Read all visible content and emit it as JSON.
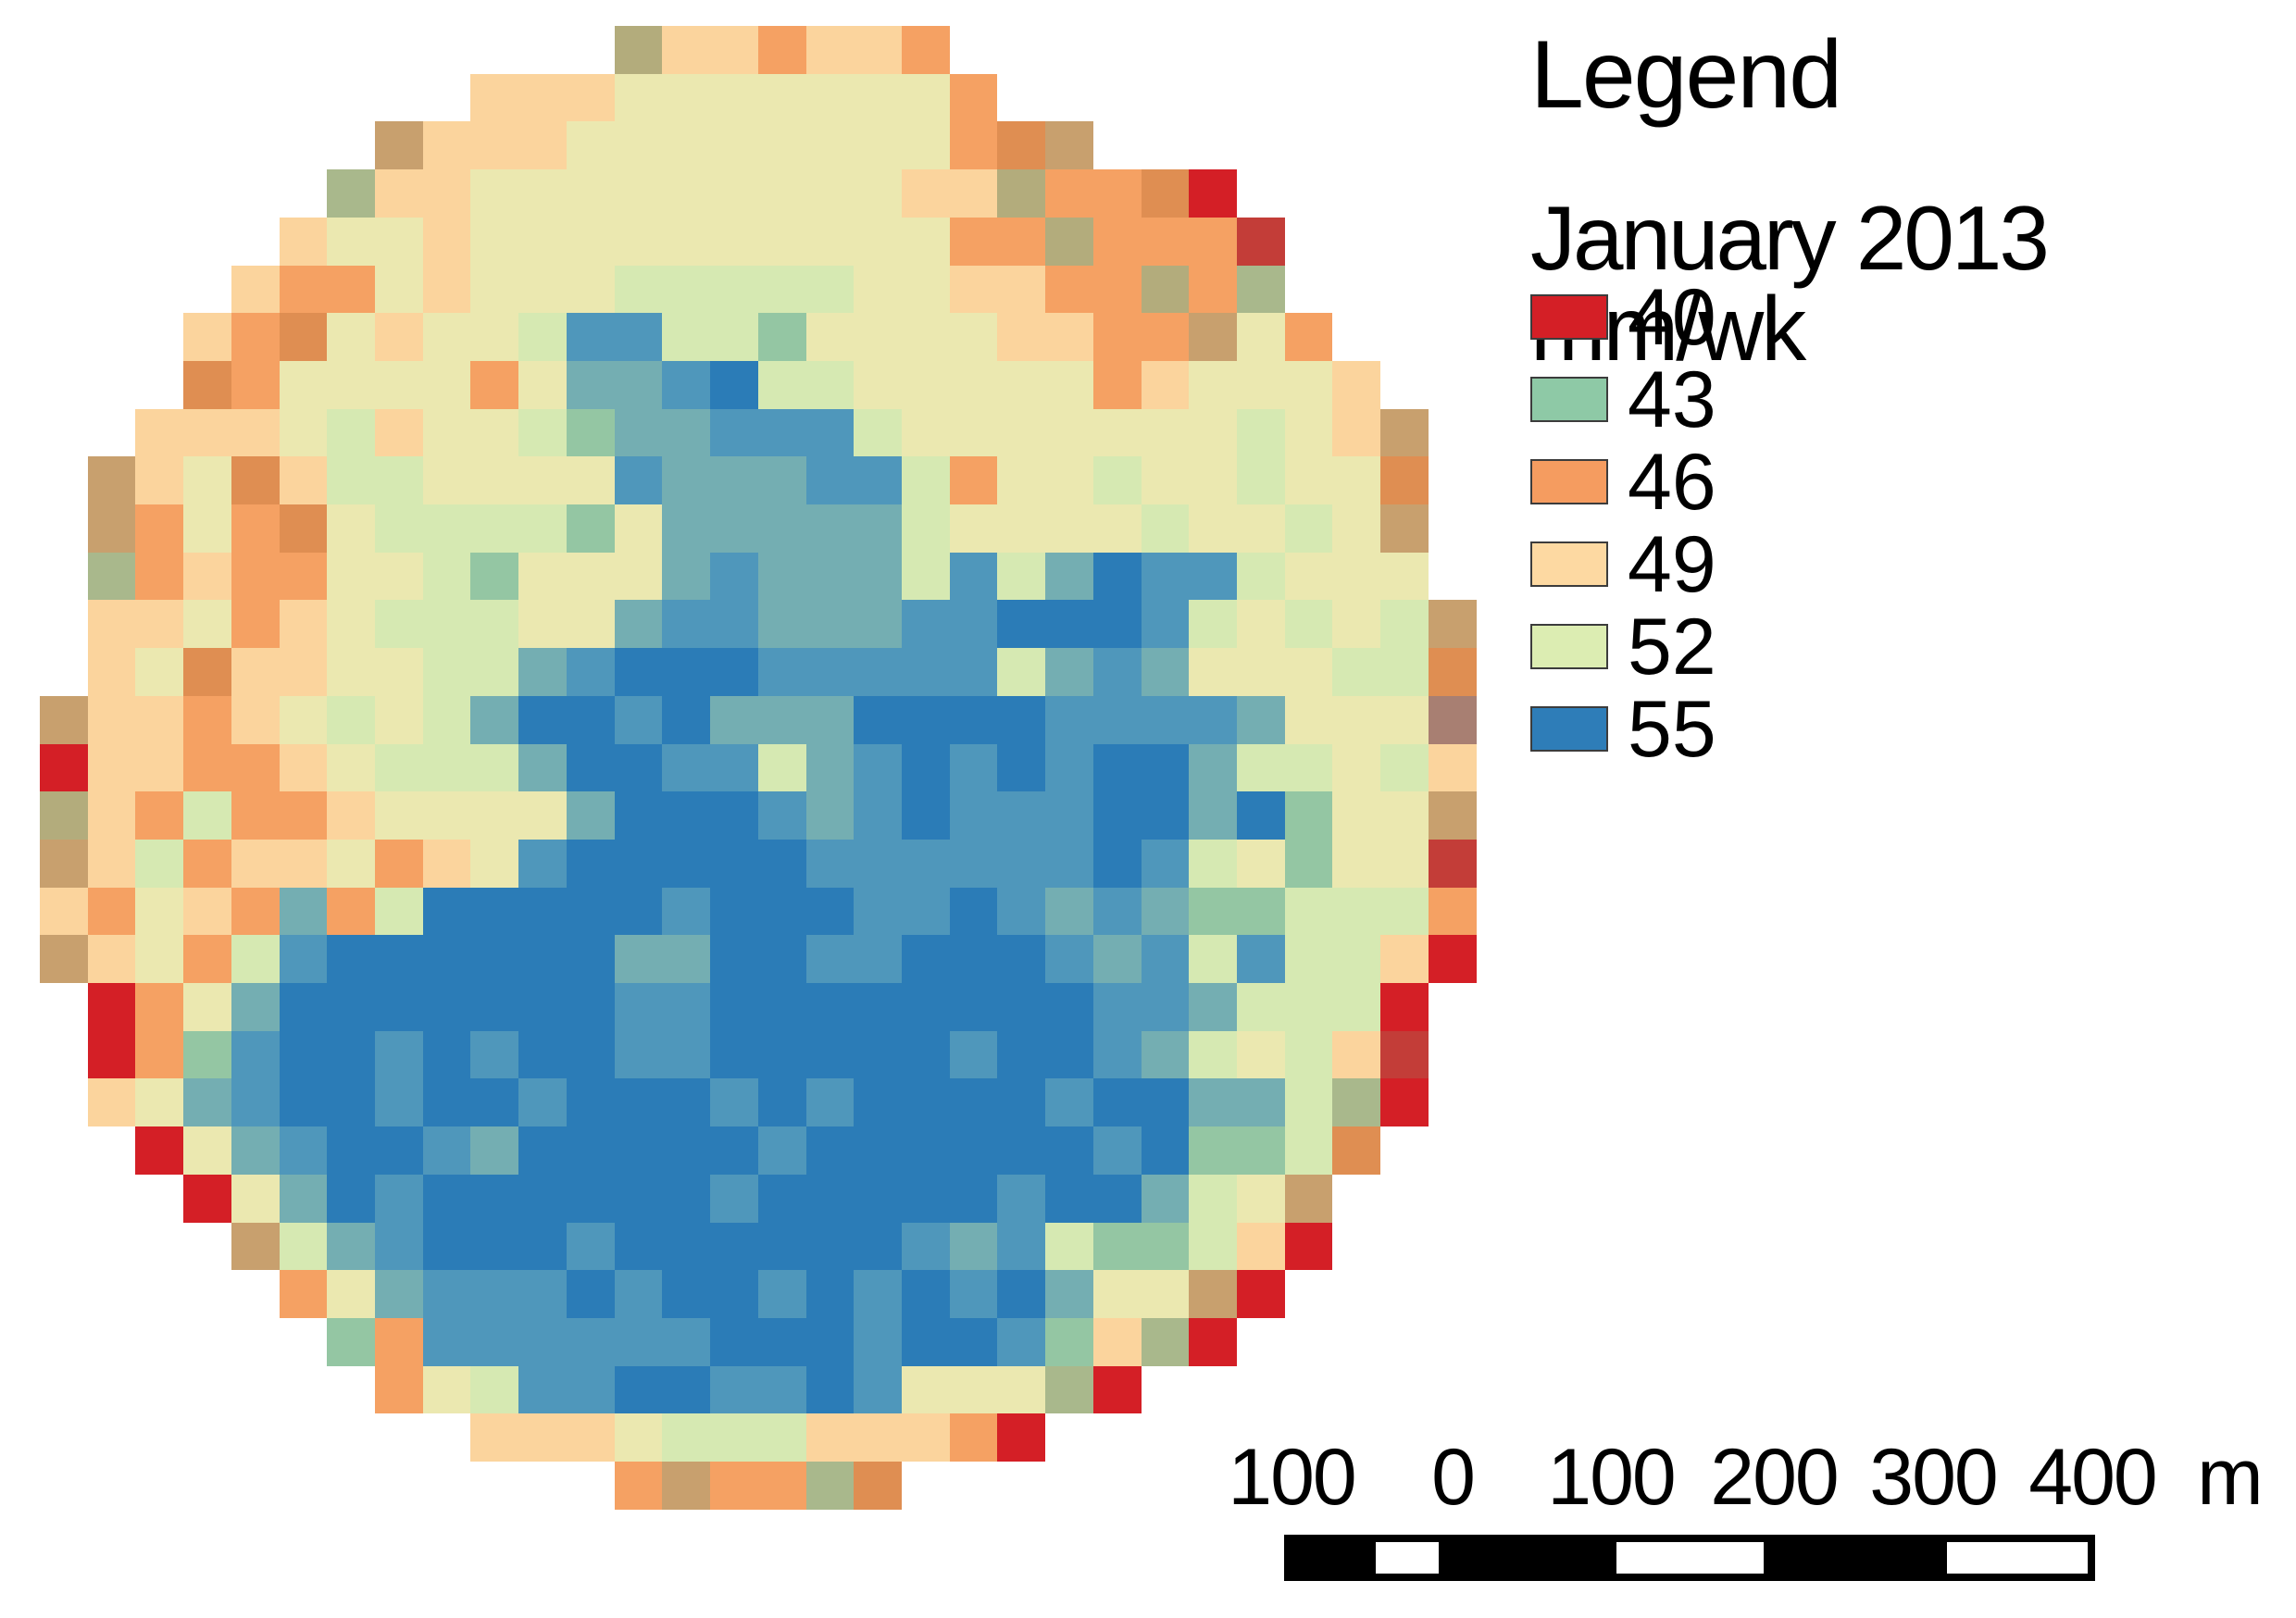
{
  "legend": {
    "title": "Legend",
    "subtitle": "January 2013 mm/wk",
    "entries": [
      {
        "value": "40",
        "color": "#d41f26"
      },
      {
        "value": "43",
        "color": "#8ec9a6"
      },
      {
        "value": "46",
        "color": "#f59c60"
      },
      {
        "value": "49",
        "color": "#fdd9a2"
      },
      {
        "value": "52",
        "color": "#dcedb2"
      },
      {
        "value": "55",
        "color": "#2e7db8"
      }
    ]
  },
  "scalebar": {
    "labels": [
      "100",
      "0",
      "100",
      "200",
      "300",
      "400",
      "m"
    ]
  },
  "map": {
    "units": "mm/wk",
    "period": "January 2013",
    "palette": {
      "R": "#d41f26",
      "r": "#c33d38",
      "O": "#f5a163",
      "o": "#df8e52",
      "N": "#c8a06e",
      "L": "#b3ac7c",
      "m": "#a87f72",
      "P": "#fbd49d",
      "Y": "#ebe8b0",
      "C": "#d6e9b2",
      "G": "#94c6a3",
      "g": "#a9b88c",
      "T": "#74aeb2",
      "b": "#4f97bb",
      "B": "#2b7cb7"
    },
    "grid": [
      "............LPPOPPO...........",
      ".........PPPYYYYYYYO..........",
      ".......NPPPYYYYYYYYOoN........",
      "......gPPYYYYYYYYYPPLOOoR.....",
      ".....PYYPYYYYYYYYYYOOLOOOr....",
      "....POOYPYYYCCCCCYYPPOOLOg....",
      "...POoYPYYCbbCCGYYYYPPOONYO...",
      "...oOYYYYOYTTbBCCYYYYYOPYYYP..",
      "..PPPYCPYYCGTTbbbCYYYYYYYCYPN.",
      ".NPYoPCCYYYYbTTTbbCOYYCYYCYYo.",
      ".NOYOoYCCCCGYTTTTTCYYYYCYYCYN.",
      ".gOPOOYYCGYYYTbTTTCbCTBbbCYYY.",
      ".PPYOPYCCCYYTbbTTTbbBBBbCYCYCN",
      ".PYoPPYYCCTbBBBbbbbbCTbTYYYCCo",
      "NPPOPYCYCTBBbBTTTBBBBbbbbTYYYm",
      "RPPOOPYCCCTBBbbCTbBbBbBBTCCYCP",
      "LPOCOOPYYYYTBBBbTbBbbbBBTBGYYN",
      "NPCOPPYOPYbBBBBBbbbbbbBbCYGYYr",
      "POYPOTOCBBBBBbBBBbbBbTbTGGCCCO",
      "NPYOCbBBBBBBTTBBbbBBBbTbCbCCPR",
      ".ROYTBBBBBBBbbBBBBBBBBbbTCCCR.",
      ".ROGbBBbBbBBbbBBBBBbBBbTCYCPr.",
      ".PYTbBBbBBbBBBbBbBBBBbBBTTCgR.",
      "..RYTbBBbTBBBBBbBBBBBBbBGGCo..",
      "...RYTBbBBBBBBbBBBBBbBBTCYN...",
      "....NCTbBBBbBBBBBBbTbCGGCPR...",
      ".....OYTbbbBbBBbBbBbBTYYNR....",
      "......GObbbbbbBBBbBBbGPgR.....",
      ".......OYCbbBBbbBbYYYgR.......",
      ".........PPPYCCCPPPOR.........",
      "............ONOOgo............"
    ]
  }
}
